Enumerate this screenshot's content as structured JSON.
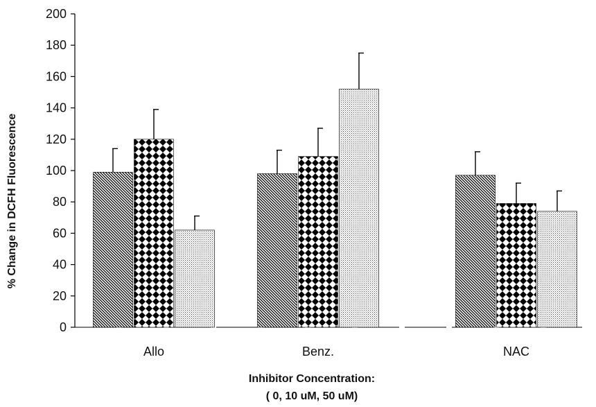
{
  "chart_data": {
    "type": "bar",
    "categories": [
      "Allo",
      "Benz.",
      "NAC"
    ],
    "series": [
      {
        "values": [
          99,
          98,
          97
        ],
        "errors": [
          15,
          15,
          15
        ],
        "pattern": "diagonal-hatch"
      },
      {
        "values": [
          120,
          109,
          79
        ],
        "errors": [
          19,
          18,
          13
        ],
        "pattern": "diamond-checker"
      },
      {
        "values": [
          62,
          152,
          74
        ],
        "errors": [
          9,
          23,
          13
        ],
        "pattern": "fine-dots"
      }
    ],
    "ylim": [
      0,
      200
    ],
    "yticks": [
      0,
      20,
      40,
      60,
      80,
      100,
      120,
      140,
      160,
      180,
      200
    ],
    "ylabel": "% Change in DCFH Fluorescence",
    "xlabel_line1": "Inhibitor Concentration:",
    "xlabel_line2": "( 0, 10 uM, 50 uM)",
    "grid": false,
    "legend": "none"
  }
}
